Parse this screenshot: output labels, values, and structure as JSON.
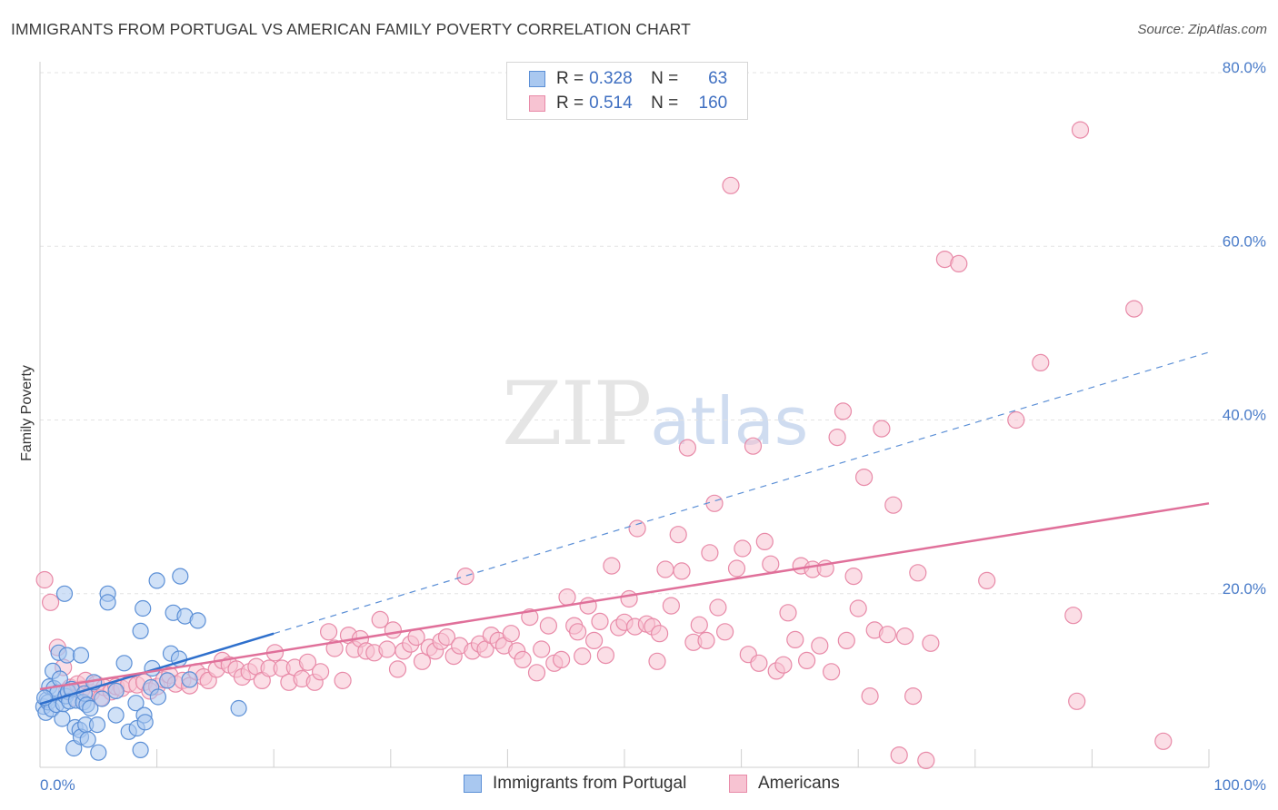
{
  "title": "IMMIGRANTS FROM PORTUGAL VS AMERICAN FAMILY POVERTY CORRELATION CHART",
  "source": "Source: ZipAtlas.com",
  "watermark": {
    "zip": "ZIP",
    "atlas": "atlas"
  },
  "legend": {
    "series1": {
      "r_label": "R =",
      "r_value": "0.328",
      "n_label": "N =",
      "n_value": "63"
    },
    "series2": {
      "r_label": "R =",
      "r_value": "0.514",
      "n_label": "N =",
      "n_value": "160"
    }
  },
  "bottom_legend": {
    "series1": "Immigrants from Portugal",
    "series2": "Americans"
  },
  "colors": {
    "blue_fill": "#a9c8f0",
    "blue_stroke": "#5b8fd6",
    "blue_line": "#2e6fcc",
    "pink_fill": "#f7c3d2",
    "pink_stroke": "#e88aa8",
    "pink_line": "#e0709a",
    "tick_text": "#4a7cc9",
    "grid": "#e3e3e3"
  },
  "chart_data": {
    "type": "scatter",
    "title": "IMMIGRANTS FROM PORTUGAL VS AMERICAN FAMILY POVERTY CORRELATION CHART",
    "xlabel": "",
    "ylabel": "Family Poverty",
    "xlim": [
      0,
      100
    ],
    "ylim": [
      0,
      80
    ],
    "x_tick_labels": [
      "0.0%",
      "100.0%"
    ],
    "y_ticks": [
      20,
      40,
      60,
      80
    ],
    "y_tick_labels": [
      "20.0%",
      "40.0%",
      "60.0%",
      "80.0%"
    ],
    "grid": true,
    "legend_position": "top-center",
    "series": [
      {
        "name": "Immigrants from Portugal",
        "r": 0.328,
        "n": 63,
        "trend": {
          "x0": 0,
          "y0": 7.3,
          "x1": 100,
          "y1": 47.8,
          "solid_until": 20
        },
        "points": [
          [
            0.3,
            7.0
          ],
          [
            0.5,
            6.3
          ],
          [
            0.6,
            7.8
          ],
          [
            0.7,
            7.5
          ],
          [
            0.8,
            9.3
          ],
          [
            1.0,
            6.7
          ],
          [
            1.1,
            11.1
          ],
          [
            1.2,
            9.1
          ],
          [
            1.4,
            7.2
          ],
          [
            1.5,
            8.6
          ],
          [
            1.6,
            13.2
          ],
          [
            1.7,
            10.2
          ],
          [
            1.9,
            5.6
          ],
          [
            2.0,
            7.3
          ],
          [
            2.1,
            20.0
          ],
          [
            2.2,
            8.2
          ],
          [
            2.3,
            12.9
          ],
          [
            2.4,
            8.7
          ],
          [
            2.5,
            7.6
          ],
          [
            2.7,
            9.0
          ],
          [
            2.9,
            2.2
          ],
          [
            3.0,
            4.6
          ],
          [
            3.1,
            7.7
          ],
          [
            3.4,
            4.3
          ],
          [
            3.5,
            12.9
          ],
          [
            3.5,
            3.5
          ],
          [
            3.7,
            7.5
          ],
          [
            3.8,
            8.5
          ],
          [
            3.9,
            4.9
          ],
          [
            4.0,
            7.2
          ],
          [
            4.1,
            3.2
          ],
          [
            4.3,
            6.8
          ],
          [
            4.6,
            9.8
          ],
          [
            4.9,
            4.9
          ],
          [
            5.0,
            1.7
          ],
          [
            5.3,
            7.9
          ],
          [
            5.8,
            20.0
          ],
          [
            5.8,
            19.0
          ],
          [
            6.5,
            8.8
          ],
          [
            6.5,
            6.0
          ],
          [
            7.2,
            12.0
          ],
          [
            7.6,
            4.1
          ],
          [
            8.2,
            7.4
          ],
          [
            8.3,
            4.5
          ],
          [
            8.6,
            15.7
          ],
          [
            8.6,
            2.0
          ],
          [
            8.8,
            18.3
          ],
          [
            8.9,
            6.0
          ],
          [
            9.0,
            5.2
          ],
          [
            9.5,
            9.2
          ],
          [
            9.6,
            11.4
          ],
          [
            10.0,
            21.5
          ],
          [
            10.1,
            8.1
          ],
          [
            10.9,
            10.0
          ],
          [
            11.2,
            13.1
          ],
          [
            11.4,
            17.8
          ],
          [
            11.9,
            12.5
          ],
          [
            12.0,
            22.0
          ],
          [
            12.4,
            17.4
          ],
          [
            12.8,
            10.1
          ],
          [
            13.5,
            16.9
          ],
          [
            17.0,
            6.8
          ],
          [
            0.4,
            8.0
          ]
        ]
      },
      {
        "name": "Americans",
        "r": 0.514,
        "n": 160,
        "trend": {
          "x0": 0,
          "y0": 9.0,
          "x1": 100,
          "y1": 30.4
        },
        "points": [
          [
            0.4,
            21.6
          ],
          [
            0.9,
            19.0
          ],
          [
            1.5,
            13.8
          ],
          [
            2.0,
            11.5
          ],
          [
            2.3,
            8.8
          ],
          [
            2.6,
            9.2
          ],
          [
            3.0,
            8.0
          ],
          [
            3.2,
            9.6
          ],
          [
            3.6,
            9.0
          ],
          [
            3.9,
            10.0
          ],
          [
            4.4,
            8.6
          ],
          [
            4.8,
            9.6
          ],
          [
            5.2,
            8.0
          ],
          [
            5.5,
            9.2
          ],
          [
            6.1,
            8.7
          ],
          [
            6.5,
            9.3
          ],
          [
            7.0,
            9.1
          ],
          [
            7.6,
            9.6
          ],
          [
            8.3,
            9.5
          ],
          [
            8.9,
            9.8
          ],
          [
            9.4,
            8.8
          ],
          [
            10.0,
            9.3
          ],
          [
            10.6,
            10.1
          ],
          [
            11.1,
            10.6
          ],
          [
            11.6,
            9.6
          ],
          [
            12.2,
            10.0
          ],
          [
            12.8,
            9.4
          ],
          [
            13.4,
            11.0
          ],
          [
            14.0,
            10.4
          ],
          [
            14.4,
            10.0
          ],
          [
            15.1,
            11.3
          ],
          [
            15.6,
            12.3
          ],
          [
            16.2,
            11.8
          ],
          [
            16.8,
            11.3
          ],
          [
            17.3,
            10.4
          ],
          [
            17.9,
            11.0
          ],
          [
            18.5,
            11.6
          ],
          [
            19.0,
            10.0
          ],
          [
            19.6,
            11.4
          ],
          [
            20.1,
            13.2
          ],
          [
            20.7,
            11.4
          ],
          [
            21.3,
            9.8
          ],
          [
            21.8,
            11.5
          ],
          [
            22.4,
            10.2
          ],
          [
            22.9,
            12.1
          ],
          [
            23.5,
            9.8
          ],
          [
            24.0,
            11.0
          ],
          [
            24.7,
            15.6
          ],
          [
            25.2,
            13.7
          ],
          [
            25.9,
            10.0
          ],
          [
            26.4,
            15.2
          ],
          [
            26.9,
            13.6
          ],
          [
            27.4,
            14.8
          ],
          [
            27.9,
            13.4
          ],
          [
            28.6,
            13.2
          ],
          [
            29.1,
            17.0
          ],
          [
            29.7,
            13.6
          ],
          [
            30.2,
            15.8
          ],
          [
            30.6,
            11.3
          ],
          [
            31.1,
            13.4
          ],
          [
            31.7,
            14.2
          ],
          [
            32.2,
            15.0
          ],
          [
            32.7,
            12.2
          ],
          [
            33.3,
            13.8
          ],
          [
            33.8,
            13.4
          ],
          [
            34.3,
            14.5
          ],
          [
            34.8,
            15.0
          ],
          [
            35.4,
            12.8
          ],
          [
            35.9,
            14.0
          ],
          [
            36.4,
            22.0
          ],
          [
            37.0,
            13.4
          ],
          [
            37.6,
            14.2
          ],
          [
            38.1,
            13.6
          ],
          [
            38.6,
            15.2
          ],
          [
            39.2,
            14.6
          ],
          [
            39.7,
            14.0
          ],
          [
            40.3,
            15.4
          ],
          [
            40.8,
            13.4
          ],
          [
            41.3,
            12.4
          ],
          [
            41.9,
            17.3
          ],
          [
            42.5,
            10.9
          ],
          [
            42.9,
            13.6
          ],
          [
            43.5,
            16.3
          ],
          [
            44.0,
            12.0
          ],
          [
            44.6,
            12.4
          ],
          [
            45.1,
            19.6
          ],
          [
            45.7,
            16.3
          ],
          [
            46.0,
            15.6
          ],
          [
            46.4,
            12.8
          ],
          [
            46.9,
            18.6
          ],
          [
            47.4,
            14.6
          ],
          [
            47.9,
            16.8
          ],
          [
            48.4,
            12.9
          ],
          [
            48.9,
            23.2
          ],
          [
            49.5,
            16.1
          ],
          [
            50.0,
            16.7
          ],
          [
            50.4,
            19.4
          ],
          [
            50.9,
            16.2
          ],
          [
            51.1,
            27.5
          ],
          [
            51.9,
            16.5
          ],
          [
            52.4,
            16.2
          ],
          [
            52.8,
            12.2
          ],
          [
            53.0,
            15.4
          ],
          [
            53.5,
            22.8
          ],
          [
            54.0,
            18.6
          ],
          [
            54.6,
            26.8
          ],
          [
            54.9,
            22.6
          ],
          [
            55.4,
            36.8
          ],
          [
            55.9,
            14.4
          ],
          [
            56.4,
            16.4
          ],
          [
            57.0,
            14.6
          ],
          [
            57.3,
            24.7
          ],
          [
            57.7,
            30.4
          ],
          [
            58.0,
            18.4
          ],
          [
            58.6,
            15.6
          ],
          [
            59.1,
            67.0
          ],
          [
            59.6,
            22.9
          ],
          [
            60.1,
            25.2
          ],
          [
            60.6,
            13.0
          ],
          [
            61.0,
            37.0
          ],
          [
            61.5,
            12.0
          ],
          [
            62.0,
            26.0
          ],
          [
            62.5,
            23.4
          ],
          [
            63.0,
            11.1
          ],
          [
            63.6,
            11.8
          ],
          [
            64.0,
            17.8
          ],
          [
            64.6,
            14.7
          ],
          [
            65.1,
            23.2
          ],
          [
            65.6,
            12.3
          ],
          [
            66.1,
            22.8
          ],
          [
            66.7,
            14.0
          ],
          [
            67.2,
            22.9
          ],
          [
            67.7,
            11.0
          ],
          [
            68.2,
            38.0
          ],
          [
            68.7,
            41.0
          ],
          [
            69.0,
            14.6
          ],
          [
            69.6,
            22.0
          ],
          [
            70.0,
            18.3
          ],
          [
            70.5,
            33.4
          ],
          [
            71.0,
            8.2
          ],
          [
            71.4,
            15.8
          ],
          [
            72.0,
            39.0
          ],
          [
            72.5,
            15.3
          ],
          [
            73.0,
            30.2
          ],
          [
            73.5,
            1.4
          ],
          [
            74.0,
            15.1
          ],
          [
            74.7,
            8.2
          ],
          [
            75.1,
            22.4
          ],
          [
            75.8,
            0.8
          ],
          [
            76.2,
            14.3
          ],
          [
            77.4,
            58.5
          ],
          [
            78.6,
            58.0
          ],
          [
            81.0,
            21.5
          ],
          [
            83.5,
            40.0
          ],
          [
            85.6,
            46.6
          ],
          [
            88.4,
            17.5
          ],
          [
            88.7,
            7.6
          ],
          [
            89.0,
            73.4
          ],
          [
            93.6,
            52.8
          ],
          [
            96.1,
            3.0
          ]
        ]
      }
    ]
  }
}
